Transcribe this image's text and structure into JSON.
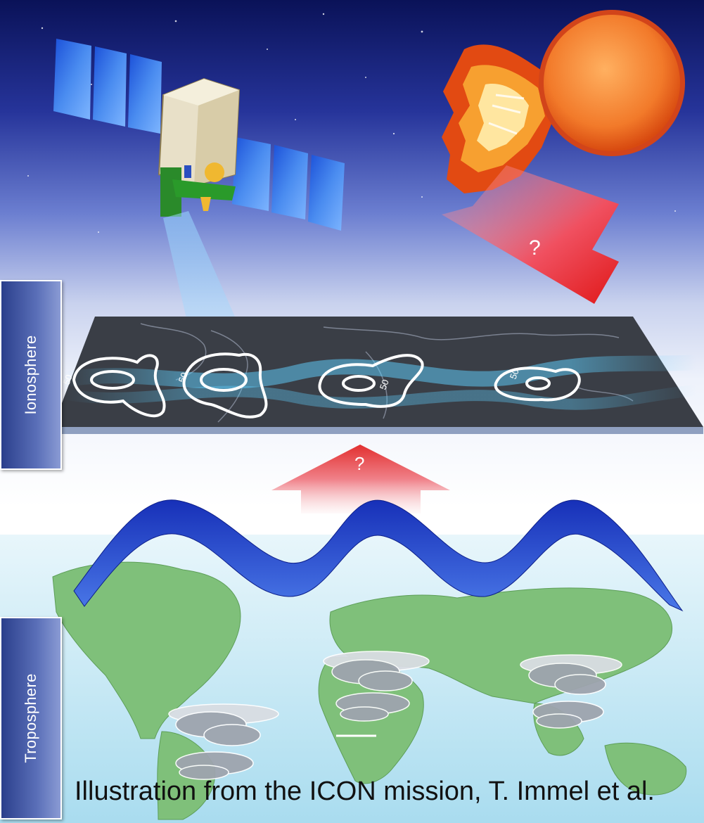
{
  "labels": {
    "ionosphere": "Ionosphere",
    "troposphere": "Troposphere"
  },
  "contour_labels": [
    "50",
    "50",
    "50",
    "50"
  ],
  "question_marks": {
    "solar_arrow": "?",
    "upward_arrow": "?"
  },
  "caption": "Illustration from the ICON mission, T. Immel et al.",
  "colors": {
    "sky_top": "#0b1560",
    "sky_mid": "#3b4fb0",
    "ionosphere_plane": "#3c4048",
    "wave": "#1f3fc0",
    "sun": "#f07830",
    "arrow": "#e83030",
    "land": "#7fc07a",
    "ocean": "#bfe6f2",
    "label_bg": "#3a4fa0"
  },
  "icons": [
    "satellite-icon",
    "sun-icon",
    "flare-icon",
    "cloud-icon"
  ]
}
